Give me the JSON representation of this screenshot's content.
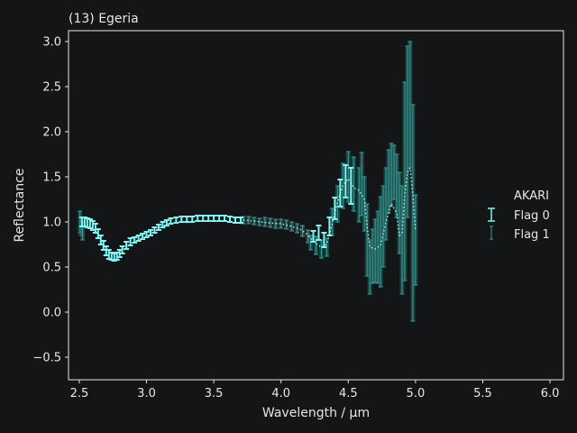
{
  "chart_data": {
    "type": "scatter",
    "title": "(13) Egeria",
    "xlabel": "Wavelength / μm",
    "ylabel": "Reflectance",
    "xlim": [
      2.42,
      6.1
    ],
    "ylim": [
      -0.75,
      3.12
    ],
    "xticks": [
      2.5,
      3.0,
      3.5,
      4.0,
      4.5,
      5.0,
      5.5,
      6.0
    ],
    "xtick_labels": [
      "2.5",
      "3.0",
      "3.5",
      "4.0",
      "4.5",
      "5.0",
      "5.5",
      "6.0"
    ],
    "yticks": [
      -0.5,
      0.0,
      0.5,
      1.0,
      1.5,
      2.0,
      2.5,
      3.0
    ],
    "ytick_labels": [
      "−0.5",
      "0.0",
      "0.5",
      "1.0",
      "1.5",
      "2.0",
      "2.5",
      "3.0"
    ],
    "grid": false,
    "legend": {
      "title": "AKARI",
      "position": "right",
      "entries": [
        "Flag 0",
        "Flag 1"
      ]
    },
    "colors": {
      "background": "#141517",
      "axes": "#e6e6e6",
      "flag0": "#7ff4f4",
      "flag1": "#3c9e98",
      "flag1_fill": "#236a66",
      "model": "#bff8f8"
    },
    "series": [
      {
        "name": "Flag 0",
        "points": [
          [
            2.52,
            1.0,
            0.05
          ],
          [
            2.54,
            1.0,
            0.05
          ],
          [
            2.56,
            0.99,
            0.05
          ],
          [
            2.58,
            0.98,
            0.05
          ],
          [
            2.6,
            0.96,
            0.05
          ],
          [
            2.62,
            0.93,
            0.05
          ],
          [
            2.64,
            0.87,
            0.05
          ],
          [
            2.66,
            0.8,
            0.05
          ],
          [
            2.68,
            0.74,
            0.05
          ],
          [
            2.7,
            0.68,
            0.05
          ],
          [
            2.72,
            0.64,
            0.05
          ],
          [
            2.74,
            0.62,
            0.04
          ],
          [
            2.76,
            0.61,
            0.04
          ],
          [
            2.78,
            0.62,
            0.04
          ],
          [
            2.8,
            0.65,
            0.04
          ],
          [
            2.82,
            0.69,
            0.04
          ],
          [
            2.85,
            0.74,
            0.04
          ],
          [
            2.88,
            0.78,
            0.04
          ],
          [
            2.91,
            0.8,
            0.03
          ],
          [
            2.94,
            0.82,
            0.03
          ],
          [
            2.97,
            0.84,
            0.03
          ],
          [
            3.0,
            0.86,
            0.03
          ],
          [
            3.03,
            0.88,
            0.03
          ],
          [
            3.06,
            0.91,
            0.03
          ],
          [
            3.09,
            0.94,
            0.03
          ],
          [
            3.12,
            0.97,
            0.03
          ],
          [
            3.15,
            0.99,
            0.03
          ],
          [
            3.18,
            1.01,
            0.03
          ],
          [
            3.22,
            1.02,
            0.03
          ],
          [
            3.26,
            1.03,
            0.03
          ],
          [
            3.3,
            1.03,
            0.03
          ],
          [
            3.34,
            1.03,
            0.03
          ],
          [
            3.38,
            1.04,
            0.03
          ],
          [
            3.42,
            1.04,
            0.03
          ],
          [
            3.46,
            1.04,
            0.03
          ],
          [
            3.5,
            1.04,
            0.03
          ],
          [
            3.54,
            1.04,
            0.03
          ],
          [
            3.58,
            1.04,
            0.03
          ],
          [
            3.62,
            1.03,
            0.03
          ],
          [
            3.66,
            1.02,
            0.03
          ],
          [
            3.7,
            1.02,
            0.03
          ],
          [
            4.24,
            0.84,
            0.06
          ],
          [
            4.28,
            0.88,
            0.08
          ],
          [
            4.32,
            0.8,
            0.08
          ],
          [
            4.36,
            0.95,
            0.1
          ],
          [
            4.4,
            1.15,
            0.12
          ],
          [
            4.44,
            1.32,
            0.15
          ],
          [
            4.48,
            1.45,
            0.18
          ],
          [
            4.52,
            1.4,
            0.2
          ]
        ]
      },
      {
        "name": "Flag 1",
        "points": [
          [
            2.505,
            1.0,
            0.12
          ],
          [
            2.515,
            0.95,
            0.1
          ],
          [
            2.525,
            0.9,
            0.1
          ],
          [
            3.72,
            1.02,
            0.04
          ],
          [
            3.76,
            1.02,
            0.04
          ],
          [
            3.8,
            1.01,
            0.04
          ],
          [
            3.84,
            1.0,
            0.04
          ],
          [
            3.88,
            1.0,
            0.05
          ],
          [
            3.92,
            0.99,
            0.05
          ],
          [
            3.96,
            0.98,
            0.05
          ],
          [
            4.0,
            0.98,
            0.05
          ],
          [
            4.04,
            0.97,
            0.05
          ],
          [
            4.08,
            0.95,
            0.05
          ],
          [
            4.12,
            0.93,
            0.05
          ],
          [
            4.16,
            0.9,
            0.06
          ],
          [
            4.2,
            0.84,
            0.07
          ],
          [
            4.22,
            0.77,
            0.08
          ],
          [
            4.26,
            0.74,
            0.1
          ],
          [
            4.3,
            0.7,
            0.1
          ],
          [
            4.34,
            0.72,
            0.1
          ],
          [
            4.38,
            1.0,
            0.15
          ],
          [
            4.42,
            1.2,
            0.2
          ],
          [
            4.46,
            1.4,
            0.25
          ],
          [
            4.5,
            1.5,
            0.28
          ],
          [
            4.54,
            1.42,
            0.3
          ],
          [
            4.58,
            1.3,
            0.3
          ],
          [
            4.6,
            1.42,
            0.35
          ],
          [
            4.62,
            1.2,
            0.3
          ],
          [
            4.64,
            0.8,
            0.4
          ],
          [
            4.66,
            0.5,
            0.3
          ],
          [
            4.68,
            0.62,
            0.3
          ],
          [
            4.7,
            0.68,
            0.35
          ],
          [
            4.72,
            0.72,
            0.4
          ],
          [
            4.74,
            0.78,
            0.5
          ],
          [
            4.76,
            0.95,
            0.45
          ],
          [
            4.78,
            1.2,
            0.4
          ],
          [
            4.8,
            1.45,
            0.35
          ],
          [
            4.82,
            1.52,
            0.35
          ],
          [
            4.84,
            1.55,
            0.3
          ],
          [
            4.86,
            1.4,
            0.35
          ],
          [
            4.88,
            1.1,
            0.45
          ],
          [
            4.9,
            0.8,
            0.6
          ],
          [
            4.92,
            1.45,
            1.1
          ],
          [
            4.94,
            2.0,
            0.95
          ],
          [
            4.96,
            2.3,
            0.7
          ],
          [
            4.98,
            1.1,
            1.2
          ],
          [
            5.0,
            0.8,
            0.5
          ]
        ]
      }
    ],
    "model_curve": {
      "x": [
        3.72,
        3.8,
        3.9,
        4.0,
        4.08,
        4.14,
        4.18,
        4.22,
        4.26,
        4.3,
        4.34,
        4.38,
        4.42,
        4.46,
        4.5,
        4.54,
        4.58,
        4.62,
        4.64,
        4.66,
        4.7,
        4.74,
        4.78,
        4.82,
        4.86,
        4.88,
        4.9,
        4.92,
        4.94,
        4.96,
        4.98,
        5.0
      ],
      "y": [
        1.02,
        1.01,
        0.99,
        0.98,
        0.95,
        0.92,
        0.88,
        0.82,
        0.76,
        0.72,
        0.75,
        0.98,
        1.22,
        1.4,
        1.48,
        1.38,
        1.35,
        1.25,
        0.95,
        0.72,
        0.7,
        0.74,
        1.0,
        1.2,
        1.1,
        0.85,
        0.88,
        1.3,
        1.55,
        1.6,
        1.3,
        0.9
      ]
    }
  }
}
